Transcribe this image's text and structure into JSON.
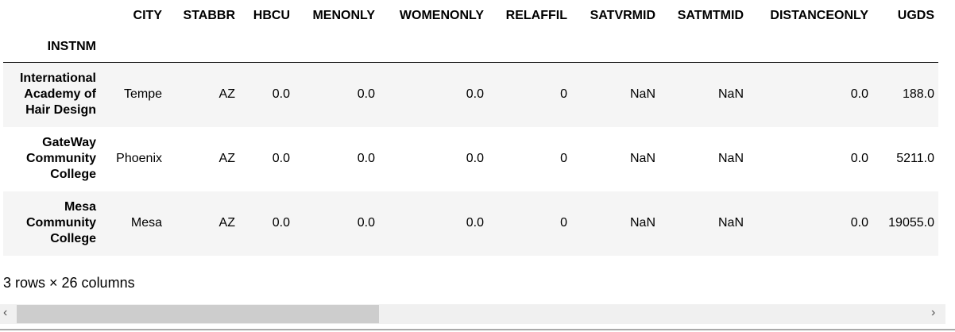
{
  "index_name": "INSTNM",
  "columns": [
    "CITY",
    "STABBR",
    "HBCU",
    "MENONLY",
    "WOMENONLY",
    "RELAFFIL",
    "SATVRMID",
    "SATMTMID",
    "DISTANCEONLY",
    "UGDS"
  ],
  "rows": [
    {
      "index": "International Academy of Hair Design",
      "cells": [
        "Tempe",
        "AZ",
        "0.0",
        "0.0",
        "0.0",
        "0",
        "NaN",
        "NaN",
        "0.0",
        "188.0"
      ]
    },
    {
      "index": "GateWay Community College",
      "cells": [
        "Phoenix",
        "AZ",
        "0.0",
        "0.0",
        "0.0",
        "0",
        "NaN",
        "NaN",
        "0.0",
        "5211.0"
      ]
    },
    {
      "index": "Mesa Community College",
      "cells": [
        "Mesa",
        "AZ",
        "0.0",
        "0.0",
        "0.0",
        "0",
        "NaN",
        "NaN",
        "0.0",
        "19055.0"
      ]
    }
  ],
  "footer": "3 rows × 26 columns",
  "scrollbar": {
    "left_arrow": "‹",
    "right_arrow": "›",
    "thumb_fraction": 0.39
  }
}
